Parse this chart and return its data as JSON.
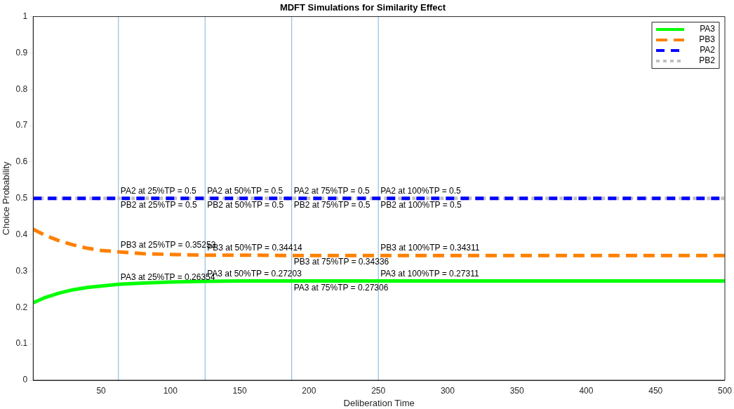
{
  "chart_data": {
    "type": "line",
    "title": "MDFT Simulations for Similarity Effect",
    "xlabel": "Deliberation Time",
    "ylabel": "Choice Probability",
    "xlim": [
      1,
      500
    ],
    "xticks": [
      50,
      100,
      150,
      200,
      250,
      300,
      350,
      400,
      450,
      500
    ],
    "ylim": [
      0,
      1
    ],
    "yticks": [
      0,
      0.1,
      0.2,
      0.3,
      0.4,
      0.5,
      0.6,
      0.7,
      0.8,
      0.9,
      1
    ],
    "grid": false,
    "legend": "top right",
    "marker": "none",
    "series": [
      {
        "name": "PA3",
        "color": "#00ff00",
        "line_style": "solid",
        "x": [
          1,
          10,
          20,
          30,
          40,
          50,
          62.5,
          80,
          100,
          125,
          150,
          187.5,
          250,
          500
        ],
        "values": [
          0.213,
          0.228,
          0.24,
          0.249,
          0.255,
          0.259,
          0.264,
          0.267,
          0.27,
          0.272,
          0.273,
          0.273,
          0.273,
          0.273
        ]
      },
      {
        "name": "PB3",
        "color": "#ff8000",
        "line_style": "dashed",
        "x": [
          1,
          10,
          20,
          30,
          40,
          50,
          62.5,
          80,
          100,
          125,
          150,
          187.5,
          250,
          500
        ],
        "values": [
          0.415,
          0.398,
          0.383,
          0.372,
          0.363,
          0.357,
          0.353,
          0.348,
          0.346,
          0.344,
          0.344,
          0.343,
          0.343,
          0.343
        ]
      },
      {
        "name": "PA2",
        "color": "#0000ff",
        "line_style": "dashed",
        "x": [
          1,
          500
        ],
        "values": [
          0.5,
          0.5
        ]
      },
      {
        "name": "PB2",
        "color": "#c0c0c0",
        "line_style": "dotted",
        "x": [
          1,
          500
        ],
        "values": [
          0.5,
          0.5
        ]
      }
    ],
    "ref_lines": [
      {
        "axis": "x",
        "value": 62.5,
        "color": "#7fb2d9"
      },
      {
        "axis": "x",
        "value": 125,
        "color": "#7fb2d9"
      },
      {
        "axis": "x",
        "value": 187.5,
        "color": "#7fb2d9"
      },
      {
        "axis": "x",
        "value": 250,
        "color": "#7fb2d9"
      }
    ],
    "annotations": [
      {
        "text": "PA2 at 25%TP = 0.5",
        "x": 62.5,
        "y": 0.5
      },
      {
        "text": "PB2 at 25%TP = 0.5",
        "x": 62.5,
        "y": 0.5
      },
      {
        "text": "PA2 at 50%TP = 0.5",
        "x": 125,
        "y": 0.5
      },
      {
        "text": "PB2 at 50%TP = 0.5",
        "x": 125,
        "y": 0.5
      },
      {
        "text": "PA2 at 75%TP = 0.5",
        "x": 187.5,
        "y": 0.5
      },
      {
        "text": "PB2 at 75%TP = 0.5",
        "x": 187.5,
        "y": 0.5
      },
      {
        "text": "PA2 at 100%TP = 0.5",
        "x": 250,
        "y": 0.5
      },
      {
        "text": "PB2 at 100%TP = 0.5",
        "x": 250,
        "y": 0.5
      },
      {
        "text": "PB3 at 25%TP = 0.35253",
        "x": 62.5,
        "y": 0.35253
      },
      {
        "text": "PB3 at 50%TP = 0.34414",
        "x": 125,
        "y": 0.34414
      },
      {
        "text": "PB3 at 75%TP = 0.34336",
        "x": 187.5,
        "y": 0.34336
      },
      {
        "text": "PB3 at 100%TP = 0.34311",
        "x": 250,
        "y": 0.34311
      },
      {
        "text": "PA3 at 25%TP = 0.26354",
        "x": 62.5,
        "y": 0.26354
      },
      {
        "text": "PA3 at 50%TP = 0.27203",
        "x": 125,
        "y": 0.27203
      },
      {
        "text": "PA3 at 75%TP = 0.27306",
        "x": 187.5,
        "y": 0.27306
      },
      {
        "text": "PA3 at 100%TP = 0.27311",
        "x": 250,
        "y": 0.27311
      }
    ]
  }
}
